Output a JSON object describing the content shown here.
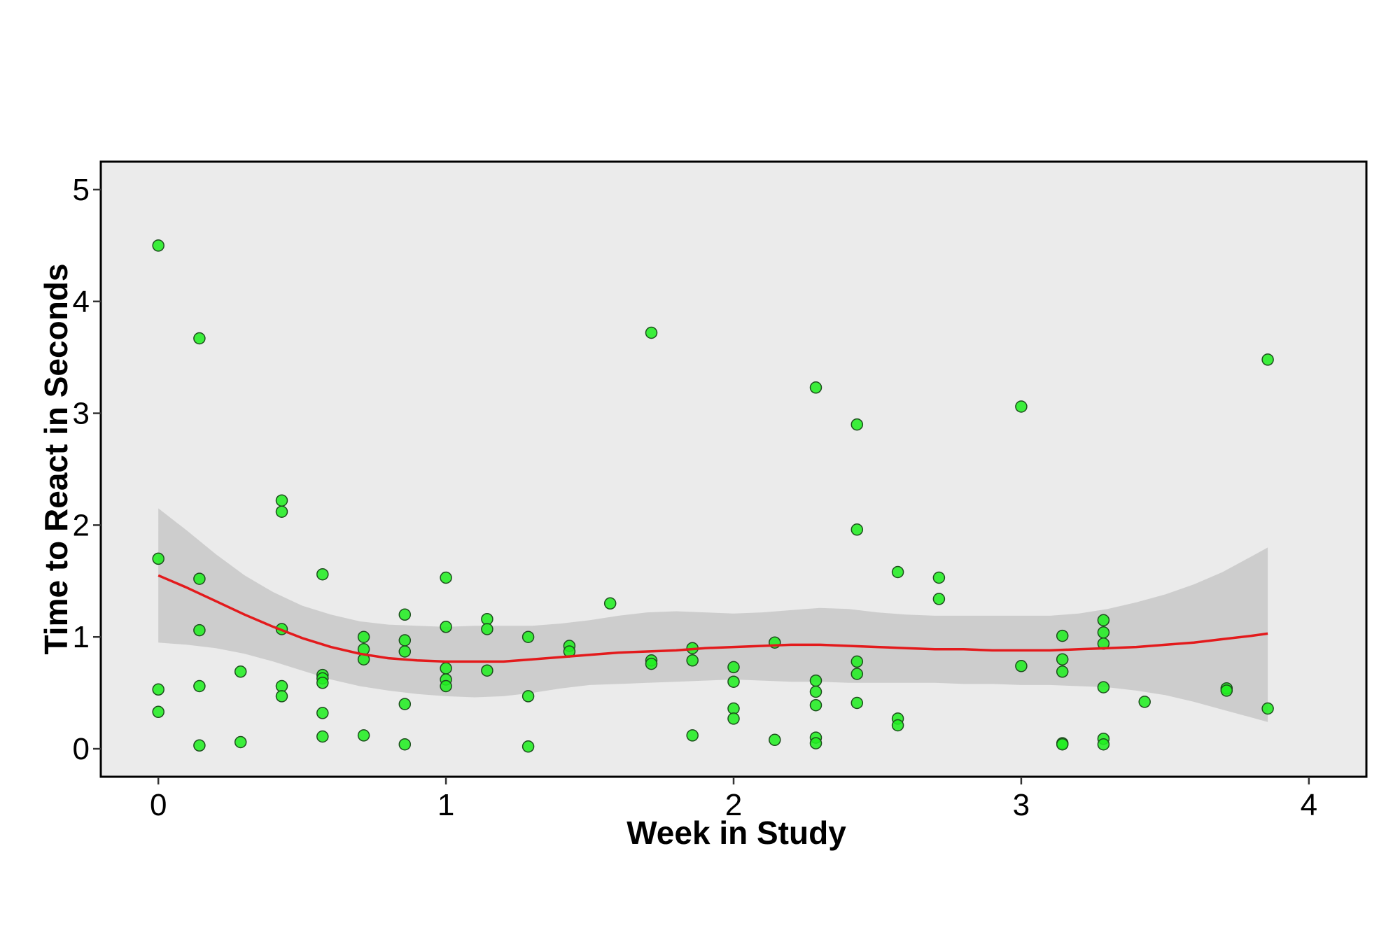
{
  "chart_data": {
    "type": "scatter",
    "title": "",
    "xlabel": "Week in Study",
    "ylabel": "Time to React in Seconds",
    "xlim": [
      -0.2,
      4.2
    ],
    "ylim": [
      -0.25,
      5.25
    ],
    "x_ticks": [
      0,
      1,
      2,
      3,
      4
    ],
    "y_ticks": [
      0,
      1,
      2,
      3,
      4,
      5
    ],
    "grid": false,
    "legend": "none",
    "colors": {
      "panel": "#ebebeb",
      "point_fill": "#22ee22",
      "point_stroke": "#1d4d1d",
      "ribbon": "#c8c8c8",
      "smooth_line": "#e31a1c"
    },
    "points": {
      "x": [
        0,
        0,
        0,
        0,
        0.143,
        0.143,
        0.143,
        0.143,
        0.143,
        0.286,
        0.286,
        0.429,
        0.429,
        0.429,
        0.429,
        0.429,
        0.571,
        0.571,
        0.571,
        0.571,
        0.571,
        0.571,
        0.714,
        0.714,
        0.714,
        0.714,
        0.857,
        0.857,
        0.857,
        0.857,
        0.857,
        1.0,
        1.0,
        1.0,
        1.0,
        1.0,
        1.143,
        1.143,
        1.143,
        1.286,
        1.286,
        1.286,
        1.429,
        1.429,
        1.571,
        1.714,
        1.714,
        1.714,
        1.857,
        1.857,
        1.857,
        2.0,
        2.0,
        2.0,
        2.0,
        2.143,
        2.143,
        2.286,
        2.286,
        2.286,
        2.286,
        2.286,
        2.286,
        2.429,
        2.429,
        2.429,
        2.429,
        2.429,
        2.571,
        2.571,
        2.571,
        2.714,
        2.714,
        3.0,
        3.0,
        3.143,
        3.143,
        3.143,
        3.143,
        3.143,
        3.286,
        3.286,
        3.286,
        3.286,
        3.286,
        3.286,
        3.429,
        3.714,
        3.714,
        3.857,
        3.857
      ],
      "y": [
        4.5,
        1.7,
        0.53,
        0.33,
        3.67,
        1.52,
        1.06,
        0.56,
        0.03,
        0.69,
        0.06,
        2.22,
        2.12,
        1.07,
        0.56,
        0.47,
        1.56,
        0.66,
        0.63,
        0.59,
        0.32,
        0.11,
        1.0,
        0.89,
        0.8,
        0.12,
        1.2,
        0.97,
        0.87,
        0.4,
        0.04,
        1.53,
        1.09,
        0.72,
        0.62,
        0.56,
        1.16,
        1.07,
        0.7,
        1.0,
        0.47,
        0.02,
        0.92,
        0.87,
        1.3,
        3.72,
        0.79,
        0.76,
        0.9,
        0.79,
        0.12,
        0.73,
        0.6,
        0.36,
        0.27,
        0.95,
        0.08,
        3.23,
        0.61,
        0.51,
        0.39,
        0.1,
        0.05,
        2.9,
        1.96,
        0.78,
        0.67,
        0.41,
        1.58,
        0.27,
        0.21,
        1.53,
        1.34,
        3.06,
        0.74,
        1.01,
        0.8,
        0.69,
        0.05,
        0.04,
        1.15,
        1.04,
        0.94,
        0.55,
        0.09,
        0.04,
        0.42,
        0.54,
        0.52,
        3.48,
        0.36
      ]
    },
    "smooth": {
      "x": [
        0,
        0.1,
        0.2,
        0.3,
        0.4,
        0.5,
        0.6,
        0.7,
        0.8,
        0.9,
        1.0,
        1.1,
        1.2,
        1.3,
        1.4,
        1.5,
        1.6,
        1.7,
        1.8,
        1.9,
        2.0,
        2.1,
        2.2,
        2.3,
        2.4,
        2.5,
        2.6,
        2.7,
        2.8,
        2.9,
        3.0,
        3.1,
        3.2,
        3.3,
        3.4,
        3.5,
        3.6,
        3.7,
        3.8,
        3.857
      ],
      "y": [
        1.55,
        1.44,
        1.32,
        1.2,
        1.09,
        0.99,
        0.91,
        0.85,
        0.81,
        0.79,
        0.78,
        0.78,
        0.78,
        0.8,
        0.82,
        0.84,
        0.86,
        0.87,
        0.88,
        0.9,
        0.91,
        0.92,
        0.93,
        0.93,
        0.92,
        0.91,
        0.9,
        0.89,
        0.89,
        0.88,
        0.88,
        0.88,
        0.89,
        0.9,
        0.91,
        0.93,
        0.95,
        0.98,
        1.01,
        1.03
      ],
      "lower": [
        0.95,
        0.93,
        0.9,
        0.85,
        0.78,
        0.7,
        0.62,
        0.56,
        0.52,
        0.49,
        0.47,
        0.46,
        0.47,
        0.5,
        0.54,
        0.57,
        0.58,
        0.59,
        0.6,
        0.61,
        0.62,
        0.61,
        0.6,
        0.6,
        0.59,
        0.59,
        0.59,
        0.59,
        0.58,
        0.58,
        0.57,
        0.57,
        0.56,
        0.55,
        0.52,
        0.48,
        0.42,
        0.35,
        0.28,
        0.24
      ],
      "upper": [
        2.15,
        1.95,
        1.74,
        1.55,
        1.4,
        1.28,
        1.2,
        1.14,
        1.11,
        1.1,
        1.09,
        1.1,
        1.1,
        1.1,
        1.12,
        1.15,
        1.19,
        1.22,
        1.23,
        1.22,
        1.21,
        1.22,
        1.24,
        1.26,
        1.25,
        1.22,
        1.2,
        1.19,
        1.19,
        1.19,
        1.19,
        1.19,
        1.21,
        1.25,
        1.31,
        1.38,
        1.47,
        1.58,
        1.72,
        1.8
      ]
    }
  }
}
